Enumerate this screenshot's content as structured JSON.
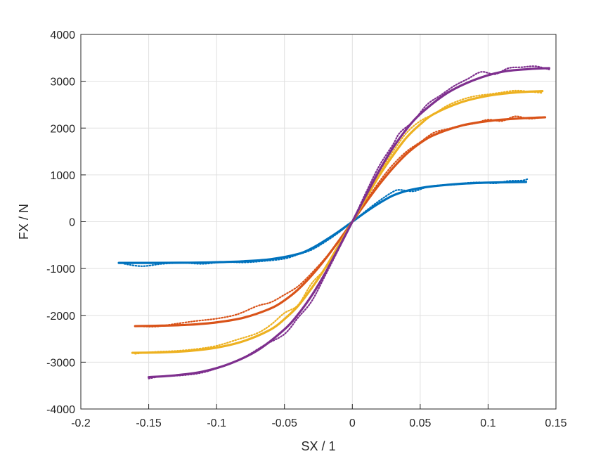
{
  "chart_data": {
    "type": "line",
    "title": "",
    "xlabel": "SX / 1",
    "ylabel": "FX / N",
    "xlim": [
      -0.2,
      0.15
    ],
    "ylim": [
      -4000,
      4000
    ],
    "xticks": [
      -0.2,
      -0.15,
      -0.1,
      -0.05,
      0,
      0.05,
      0.1,
      0.15
    ],
    "yticks": [
      -4000,
      -3000,
      -2000,
      -1000,
      0,
      1000,
      2000,
      3000,
      4000
    ],
    "xtick_labels": [
      "-0.2",
      "-0.15",
      "-0.1",
      "-0.05",
      "0",
      "0.05",
      "0.1",
      "0.15"
    ],
    "ytick_labels": [
      "-4000",
      "-3000",
      "-2000",
      "-1000",
      "0",
      "1000",
      "2000",
      "3000",
      "4000"
    ],
    "grid": true,
    "legend": "none",
    "series": [
      {
        "color": "#0072BD",
        "x_range": [
          -0.172,
          0.128
        ],
        "fit": {
          "x": [
            -0.172,
            -0.15,
            -0.12,
            -0.1,
            -0.08,
            -0.06,
            -0.04,
            -0.03,
            -0.02,
            -0.01,
            0.0,
            0.01,
            0.02,
            0.03,
            0.04,
            0.05,
            0.06,
            0.08,
            0.1,
            0.128
          ],
          "y": [
            -880,
            -880,
            -875,
            -865,
            -845,
            -800,
            -690,
            -570,
            -400,
            -210,
            0,
            210,
            400,
            560,
            660,
            720,
            760,
            810,
            835,
            850
          ]
        },
        "measured": {
          "x": [
            -0.168,
            -0.155,
            -0.14,
            -0.125,
            -0.11,
            -0.095,
            -0.08,
            -0.065,
            -0.05,
            -0.04,
            -0.03,
            -0.02,
            -0.01,
            0.0,
            0.01,
            0.02,
            0.03,
            0.035,
            0.045,
            0.055,
            0.065,
            0.075,
            0.085,
            0.095,
            0.105,
            0.115,
            0.125,
            0.13
          ],
          "y": [
            -900,
            -950,
            -900,
            -880,
            -900,
            -860,
            -870,
            -840,
            -790,
            -700,
            -600,
            -430,
            -230,
            0,
            230,
            450,
            640,
            680,
            650,
            740,
            780,
            790,
            830,
            840,
            820,
            870,
            880,
            920
          ]
        }
      },
      {
        "color": "#D95319",
        "x_range": [
          -0.16,
          0.142
        ],
        "fit": {
          "x": [
            -0.16,
            -0.14,
            -0.12,
            -0.1,
            -0.08,
            -0.06,
            -0.05,
            -0.04,
            -0.03,
            -0.02,
            -0.01,
            0.0,
            0.01,
            0.02,
            0.03,
            0.04,
            0.05,
            0.06,
            0.08,
            0.1,
            0.12,
            0.142
          ],
          "y": [
            -2230,
            -2220,
            -2200,
            -2150,
            -2050,
            -1850,
            -1680,
            -1450,
            -1150,
            -800,
            -410,
            0,
            410,
            800,
            1150,
            1450,
            1680,
            1850,
            2050,
            2150,
            2200,
            2230
          ]
        },
        "measured": {
          "x": [
            -0.158,
            -0.145,
            -0.13,
            -0.115,
            -0.1,
            -0.085,
            -0.07,
            -0.06,
            -0.05,
            -0.04,
            -0.03,
            -0.02,
            -0.01,
            0.0,
            0.01,
            0.02,
            0.03,
            0.04,
            0.05,
            0.06,
            0.07,
            0.08,
            0.09,
            0.1,
            0.11,
            0.12,
            0.13,
            0.14
          ],
          "y": [
            -2230,
            -2240,
            -2180,
            -2120,
            -2070,
            -1980,
            -1800,
            -1720,
            -1560,
            -1380,
            -1100,
            -780,
            -420,
            0,
            440,
            860,
            1220,
            1500,
            1700,
            1900,
            1980,
            2050,
            2100,
            2180,
            2150,
            2250,
            2200,
            2230
          ]
        }
      },
      {
        "color": "#EDB120",
        "x_range": [
          -0.162,
          0.14
        ],
        "fit": {
          "x": [
            -0.162,
            -0.14,
            -0.12,
            -0.1,
            -0.08,
            -0.06,
            -0.05,
            -0.04,
            -0.03,
            -0.02,
            -0.01,
            0.0,
            0.01,
            0.02,
            0.03,
            0.04,
            0.05,
            0.06,
            0.08,
            0.1,
            0.12,
            0.14
          ],
          "y": [
            -2800,
            -2790,
            -2760,
            -2690,
            -2550,
            -2300,
            -2080,
            -1800,
            -1420,
            -990,
            -500,
            0,
            500,
            990,
            1420,
            1800,
            2080,
            2300,
            2550,
            2690,
            2760,
            2790
          ]
        },
        "measured": {
          "x": [
            -0.16,
            -0.145,
            -0.13,
            -0.115,
            -0.1,
            -0.085,
            -0.07,
            -0.06,
            -0.05,
            -0.04,
            -0.03,
            -0.02,
            -0.01,
            0.0,
            0.01,
            0.02,
            0.03,
            0.04,
            0.05,
            0.06,
            0.07,
            0.08,
            0.09,
            0.1,
            0.11,
            0.12,
            0.13,
            0.14
          ],
          "y": [
            -2820,
            -2780,
            -2760,
            -2720,
            -2650,
            -2520,
            -2380,
            -2200,
            -1950,
            -1780,
            -1320,
            -1000,
            -520,
            0,
            560,
            1050,
            1500,
            1900,
            2150,
            2300,
            2480,
            2600,
            2680,
            2720,
            2760,
            2800,
            2780,
            2750
          ]
        }
      },
      {
        "color": "#7E2F8E",
        "x_range": [
          -0.15,
          0.145
        ],
        "fit": {
          "x": [
            -0.15,
            -0.13,
            -0.11,
            -0.09,
            -0.07,
            -0.05,
            -0.04,
            -0.03,
            -0.02,
            -0.01,
            0.0,
            0.01,
            0.02,
            0.03,
            0.04,
            0.05,
            0.07,
            0.09,
            0.11,
            0.13,
            0.145
          ],
          "y": [
            -3320,
            -3280,
            -3200,
            -3030,
            -2750,
            -2300,
            -1980,
            -1580,
            -1100,
            -560,
            0,
            560,
            1100,
            1580,
            1980,
            2300,
            2750,
            3030,
            3200,
            3260,
            3280
          ]
        },
        "measured": {
          "x": [
            -0.15,
            -0.14,
            -0.125,
            -0.11,
            -0.095,
            -0.08,
            -0.065,
            -0.05,
            -0.04,
            -0.03,
            -0.02,
            -0.01,
            0.0,
            0.01,
            0.02,
            0.03,
            0.035,
            0.045,
            0.055,
            0.065,
            0.075,
            0.085,
            0.095,
            0.105,
            0.115,
            0.125,
            0.135,
            0.145
          ],
          "y": [
            -3350,
            -3300,
            -3280,
            -3220,
            -3080,
            -2900,
            -2640,
            -2400,
            -2050,
            -1700,
            -1150,
            -580,
            0,
            620,
            1200,
            1650,
            1900,
            2150,
            2500,
            2700,
            2900,
            3050,
            3200,
            3150,
            3280,
            3300,
            3320,
            3250
          ]
        }
      }
    ]
  }
}
